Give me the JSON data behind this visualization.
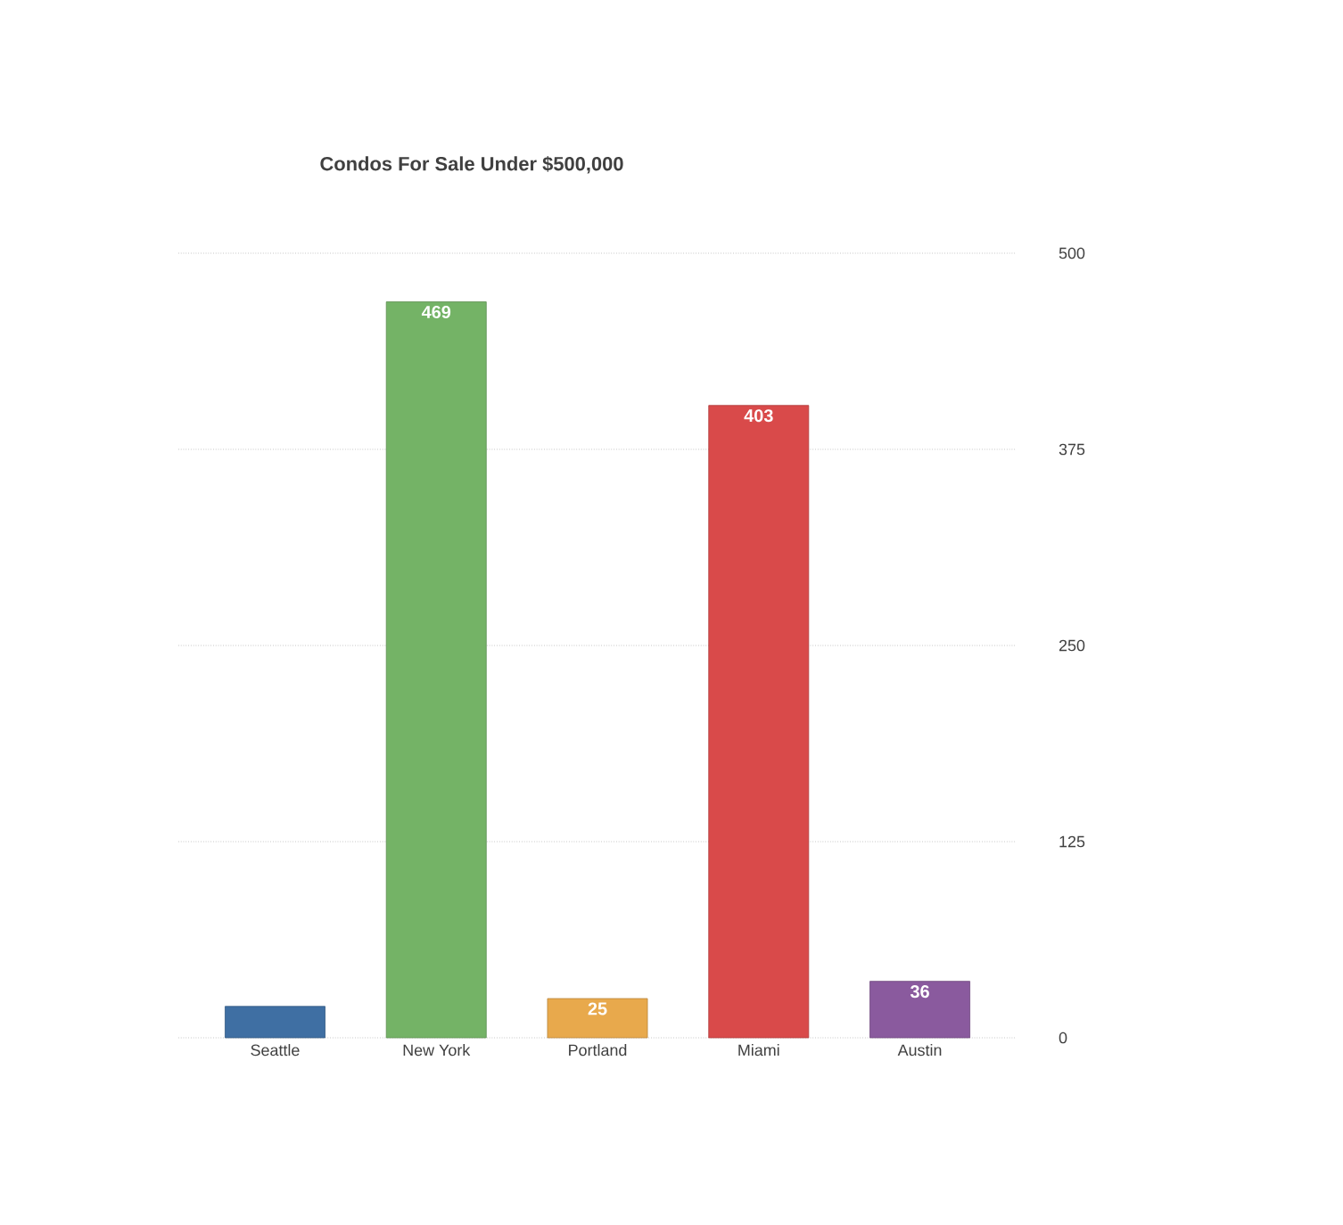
{
  "chart_data": {
    "type": "bar",
    "title": "Condos For Sale Under $500,000",
    "categories": [
      "Seattle",
      "New York",
      "Portland",
      "Miami",
      "Austin"
    ],
    "values": [
      20,
      469,
      25,
      403,
      36
    ],
    "colors": [
      "#3f6fa3",
      "#74b366",
      "#e8a94c",
      "#d94a4a",
      "#8a5a9e"
    ],
    "value_labels": [
      null,
      "469",
      "25",
      "403",
      "36"
    ],
    "ylim": [
      0,
      500
    ],
    "yticks": [
      0,
      125,
      250,
      375,
      500
    ],
    "grid": "y"
  }
}
